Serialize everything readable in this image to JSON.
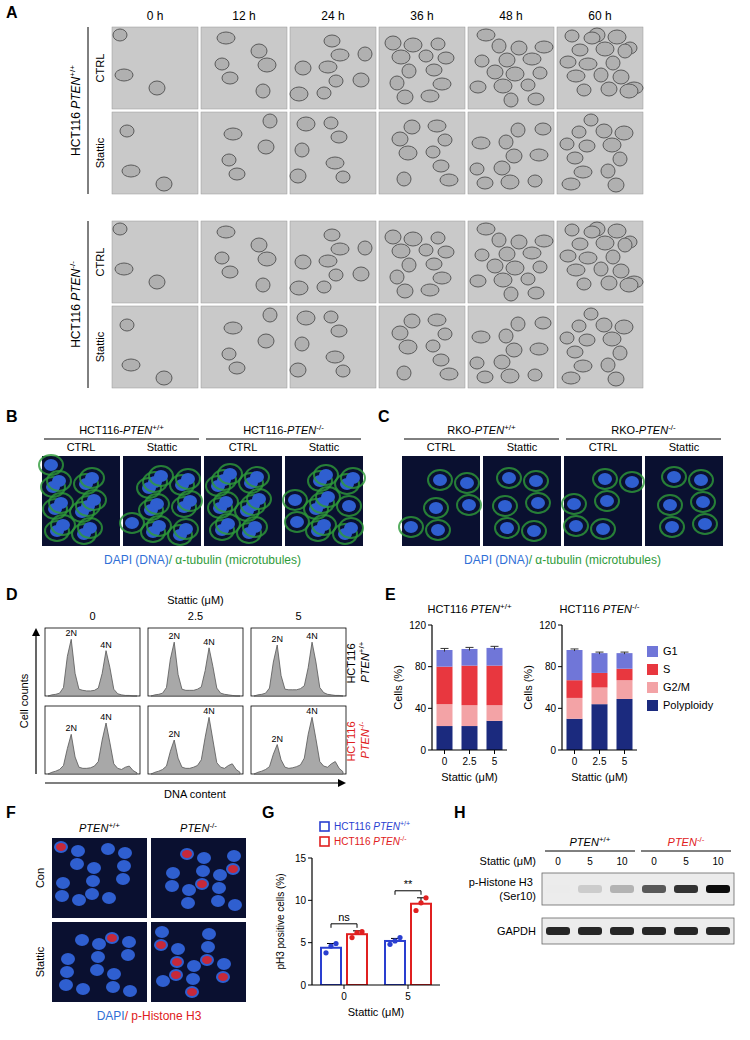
{
  "figure": {
    "panel_a": {
      "letter": "A",
      "times": [
        "0 h",
        "12 h",
        "24 h",
        "36 h",
        "48 h",
        "60 h"
      ],
      "groups": [
        {
          "cell_line": "HCT116 PTEN+/+",
          "rows": [
            "CTRL",
            "Stattic"
          ]
        },
        {
          "cell_line": "HCT116 PTEN-/-",
          "rows": [
            "CTRL",
            "Stattic"
          ]
        }
      ]
    },
    "panel_b": {
      "letter": "B",
      "groups": [
        {
          "name": "HCT116-PTEN+/+",
          "conditions": [
            "CTRL",
            "Stattic"
          ]
        },
        {
          "name": "HCT116-PTEN-/-",
          "conditions": [
            "CTRL",
            "Stattic"
          ]
        }
      ],
      "caption": [
        {
          "text": "DAPI (DNA)",
          "color": "#2f6fd6"
        },
        {
          "text": "/ α-tubulin (microtubules)",
          "color": "#2e9b3a"
        }
      ]
    },
    "panel_c": {
      "letter": "C",
      "groups": [
        {
          "name": "RKO-PTEN+/+",
          "conditions": [
            "CTRL",
            "Stattic"
          ]
        },
        {
          "name": "RKO-PTEN-/-",
          "conditions": [
            "CTRL",
            "Stattic"
          ]
        }
      ],
      "caption": [
        {
          "text": "DAPI (DNA)",
          "color": "#2f6fd6"
        },
        {
          "text": "/ α-tubulin (microtubules)",
          "color": "#2e9b3a"
        }
      ]
    },
    "panel_d": {
      "letter": "D",
      "title": "Stattic (μM)",
      "concentrations": [
        0,
        2.5,
        5
      ],
      "y_label": "Cell counts",
      "x_label": "DNA content",
      "peak_labels": [
        "2N",
        "4N"
      ],
      "ylim": [
        0,
        120
      ],
      "rows": [
        {
          "name": "HCT116 PTEN+/+",
          "color": "#000000",
          "profiles": [
            [
              0,
              2,
              3,
              5,
              15,
              70,
              100,
              40,
              12,
              10,
              9,
              9,
              10,
              14,
              40,
              80,
              50,
              12,
              4,
              2,
              1,
              1,
              0,
              0
            ],
            [
              0,
              2,
              3,
              5,
              15,
              65,
              95,
              38,
              12,
              10,
              10,
              10,
              12,
              16,
              45,
              85,
              52,
              14,
              5,
              3,
              2,
              1,
              0,
              0
            ],
            [
              0,
              2,
              3,
              5,
              14,
              60,
              90,
              36,
              12,
              11,
              11,
              11,
              13,
              18,
              50,
              95,
              60,
              15,
              6,
              3,
              2,
              1,
              1,
              0
            ]
          ]
        },
        {
          "name": "HCT116 PTEN-/-",
          "color": "#e02020",
          "profiles": [
            [
              0,
              3,
              5,
              8,
              15,
              45,
              70,
              30,
              12,
              10,
              10,
              11,
              14,
              22,
              60,
              90,
              55,
              18,
              10,
              8,
              12,
              14,
              6,
              2
            ],
            [
              0,
              3,
              5,
              8,
              14,
              40,
              60,
              28,
              12,
              10,
              10,
              12,
              15,
              25,
              65,
              100,
              60,
              20,
              12,
              10,
              15,
              18,
              8,
              3
            ],
            [
              0,
              3,
              5,
              8,
              13,
              35,
              52,
              25,
              12,
              10,
              11,
              13,
              16,
              28,
              70,
              100,
              62,
              22,
              14,
              12,
              18,
              22,
              10,
              4
            ]
          ]
        }
      ]
    },
    "panel_e": {
      "letter": "E"
    },
    "panel_f": {
      "letter": "F",
      "columns": [
        "PTEN+/+",
        "PTEN-/-"
      ],
      "rows": [
        "Con",
        "Stattic"
      ],
      "caption": [
        {
          "text": "DAPI",
          "color": "#2f6fd6"
        },
        {
          "text": "/ p-Histone H3",
          "color": "#e02020"
        }
      ]
    },
    "panel_g": {
      "letter": "G"
    },
    "panel_h": {
      "letter": "H",
      "title": "Stattic (μM)",
      "lanes": [
        0,
        5,
        10,
        0,
        5,
        10
      ],
      "groups": [
        {
          "name": "PTEN+/+",
          "color": "#000000"
        },
        {
          "name": "PTEN-/-",
          "color": "#e02020"
        }
      ],
      "bands": [
        {
          "name": "p-Histone H3 (Ser10)",
          "intensity": [
            0.08,
            0.2,
            0.3,
            0.65,
            0.8,
            0.95
          ]
        },
        {
          "name": "GAPDH",
          "intensity": [
            0.85,
            0.85,
            0.85,
            0.85,
            0.85,
            0.85
          ]
        }
      ]
    }
  },
  "chart_data": [
    {
      "type": "bar",
      "stacked": true,
      "title": "HCT116 PTEN+/+",
      "x_label": "Stattic (μM)",
      "y_label": "Cells (%)",
      "categories": [
        "0",
        "2.5",
        "5"
      ],
      "ylim": [
        0,
        120
      ],
      "yticks": [
        0,
        40,
        80,
        120
      ],
      "series": [
        {
          "name": "Polyploidy",
          "color": "#1b2a7e",
          "values": [
            23,
            23,
            28
          ]
        },
        {
          "name": "G2/M",
          "color": "#f3a3a6",
          "values": [
            21,
            20,
            15
          ]
        },
        {
          "name": "S",
          "color": "#e8373f",
          "values": [
            36,
            38,
            38
          ]
        },
        {
          "name": "G1",
          "color": "#7076d8",
          "values": [
            16,
            16,
            17
          ],
          "errors": [
            1.5,
            1.5,
            1.5
          ]
        }
      ]
    },
    {
      "type": "bar",
      "stacked": true,
      "title": "HCT116 PTEN-/-",
      "x_label": "Stattic (μM)",
      "y_label": "Cells (%)",
      "categories": [
        "0",
        "2.5",
        "5"
      ],
      "ylim": [
        0,
        120
      ],
      "yticks": [
        0,
        40,
        80,
        120
      ],
      "legend": "right",
      "series": [
        {
          "name": "Polyploidy",
          "color": "#1b2a7e",
          "values": [
            30,
            44,
            49
          ]
        },
        {
          "name": "G2/M",
          "color": "#f3a3a6",
          "values": [
            20,
            16,
            18
          ]
        },
        {
          "name": "S",
          "color": "#e8373f",
          "values": [
            17,
            14,
            11
          ]
        },
        {
          "name": "G1",
          "color": "#7076d8",
          "values": [
            29,
            19,
            15
          ],
          "errors": [
            1,
            1,
            1
          ]
        }
      ]
    },
    {
      "type": "bar",
      "x_label": "Stattic (μM)",
      "y_label": "pH3 positive cells (%)",
      "categories": [
        "0",
        "5"
      ],
      "ylim": [
        0,
        15
      ],
      "yticks": [
        0,
        5,
        10,
        15
      ],
      "legend": "top",
      "annotations": [
        "ns",
        "**"
      ],
      "series": [
        {
          "name": "HCT116 PTEN+/+",
          "color": "#2a3fd0",
          "values": [
            4.4,
            5.2
          ],
          "errors": [
            0.5,
            0.3
          ],
          "points": [
            [
              3.8,
              4.6,
              4.9
            ],
            [
              4.8,
              5.2,
              5.6
            ]
          ]
        },
        {
          "name": "HCT116 PTEN-/-",
          "color": "#e02020",
          "values": [
            6.0,
            9.6
          ],
          "errors": [
            0.4,
            0.7
          ],
          "points": [
            [
              5.6,
              6.2,
              6.3
            ],
            [
              8.8,
              9.7,
              10.3
            ]
          ]
        }
      ]
    }
  ]
}
